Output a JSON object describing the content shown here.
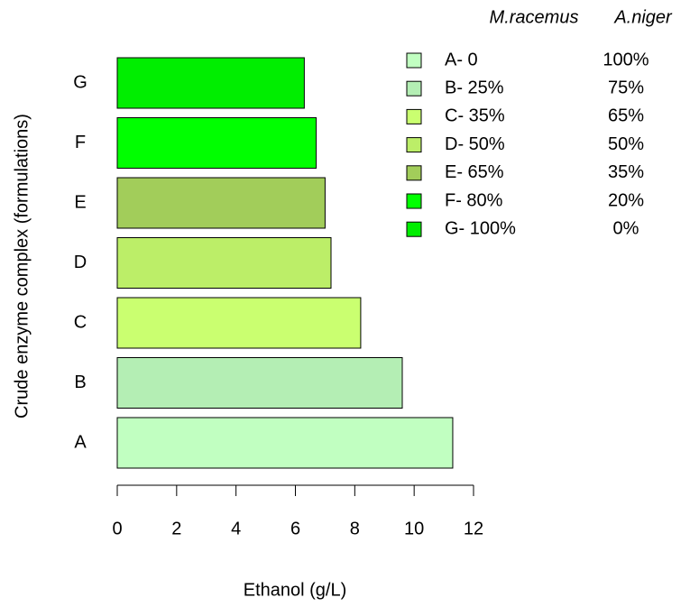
{
  "chart_data": {
    "type": "barh",
    "xlabel": "Ethanol (g/L)",
    "ylabel": "Crude enzyme complex (formulations)",
    "categories": [
      "A",
      "B",
      "C",
      "D",
      "E",
      "F",
      "G"
    ],
    "values": [
      11.3,
      9.6,
      8.2,
      7.2,
      7.0,
      6.7,
      6.3
    ],
    "colors": [
      "#c1ffc1",
      "#b4eeb4",
      "#caff70",
      "#bcee68",
      "#a2cd5a",
      "#00ff00",
      "#00ee00"
    ],
    "xlim": [
      0,
      12
    ],
    "xticks": [
      0,
      2,
      4,
      6,
      8,
      10,
      12
    ],
    "legend": {
      "headers": [
        "M.racemus",
        "A.niger"
      ],
      "labels": [
        "A- 0",
        "B- 25%",
        "C- 35%",
        "D- 50%",
        "E- 65%",
        "F- 80%",
        "G- 100%"
      ],
      "niger": [
        "100%",
        "75%",
        "65%",
        "50%",
        "35%",
        "20%",
        "0%"
      ]
    }
  }
}
